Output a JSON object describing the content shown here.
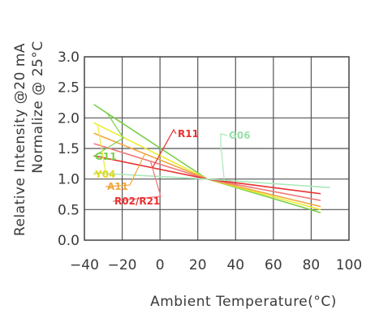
{
  "chart_data": {
    "type": "line",
    "title": "",
    "xlabel": "Ambient Temperature(°C)",
    "ylabel_lines": [
      "Relative Intensity @20 mA",
      "Normalize @ 25°C"
    ],
    "xlim": [
      -40,
      100
    ],
    "ylim": [
      0.0,
      3.0
    ],
    "xticks": [
      -40,
      -20,
      0,
      20,
      40,
      60,
      80,
      100
    ],
    "xtick_labels": [
      "−40",
      "−20",
      "0",
      "20",
      "40",
      "60",
      "80",
      "100"
    ],
    "yticks": [
      0.0,
      0.5,
      1.0,
      1.5,
      2.0,
      2.5,
      3.0
    ],
    "ytick_labels": [
      "0.0",
      "0.5",
      "1.0",
      "1.5",
      "2.0",
      "2.5",
      "3.0"
    ],
    "grid": true,
    "legend": "none",
    "series": [
      {
        "name": "G11",
        "color": "#7ad04a",
        "x": [
          -35,
          25,
          85
        ],
        "y": [
          2.22,
          1.0,
          0.45
        ]
      },
      {
        "name": "Y04",
        "color": "#ecec30",
        "x": [
          -35,
          25,
          85
        ],
        "y": [
          1.92,
          1.0,
          0.5
        ]
      },
      {
        "name": "A11",
        "color": "#f0a840",
        "x": [
          -35,
          25,
          85
        ],
        "y": [
          1.75,
          1.0,
          0.55
        ]
      },
      {
        "name": "R02/R21",
        "color": "#f07878",
        "x": [
          -35,
          25,
          85
        ],
        "y": [
          1.58,
          1.0,
          0.65
        ]
      },
      {
        "name": "R11",
        "color": "#e83030",
        "x": [
          -35,
          25,
          85
        ],
        "y": [
          1.38,
          1.0,
          0.76
        ]
      },
      {
        "name": "G06",
        "color": "#a8e8b8",
        "x": [
          -35,
          25,
          90
        ],
        "y": [
          1.1,
          1.0,
          0.86
        ]
      }
    ],
    "annotations": [
      {
        "series": "G11",
        "text": "G11",
        "color": "#7ad04a"
      },
      {
        "series": "Y04",
        "text": "Y04",
        "color": "#e0d820"
      },
      {
        "series": "A11",
        "text": "A11",
        "color": "#f0a840"
      },
      {
        "series": "R02/R21",
        "text": "R02/R21",
        "color": "#e83030"
      },
      {
        "series": "R11",
        "text": "R11",
        "color": "#e83030"
      },
      {
        "series": "G06",
        "text": "G06",
        "color": "#98e0a8"
      }
    ]
  }
}
